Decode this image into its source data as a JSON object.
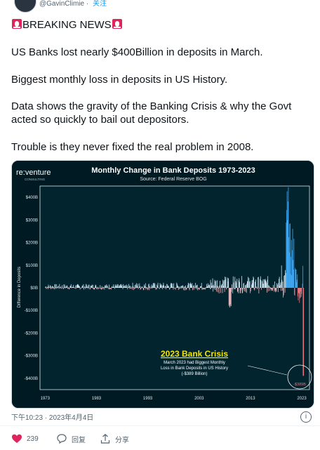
{
  "header": {
    "handle": "@GavinClimie",
    "separator": "·",
    "follow_label": "关注"
  },
  "tweet": {
    "line1": "BREAKING NEWS",
    "line2": "US Banks lost nearly $400Billion in deposits in March.",
    "line3": "Biggest monthly loss in deposits in US History.",
    "line4a": "Data shows the gravity of the Banking Crisis & why the Govt",
    "line4b": "acted so quickly to bail out depositors.",
    "line5": "Trouble is they never fixed the real problem in 2008."
  },
  "chart_data": {
    "type": "bar",
    "logo_main": "re:venture",
    "logo_sub": "CONSULTING",
    "title": "Monthly Change in Bank Deposits 1973-2023",
    "subtitle": "Source: Federal Reserve BOG",
    "ylabel": "Difference in Deposits",
    "ylim": [
      -450,
      450
    ],
    "y_ticks": [
      -400,
      -300,
      -200,
      -100,
      0,
      100,
      200,
      300,
      400
    ],
    "y_tick_labels": [
      "-$400B",
      "-$300B",
      "-$200B",
      "-$100B",
      "$0B",
      "$100B",
      "$200B",
      "$300B",
      "$400B"
    ],
    "x_ticks": [
      1973,
      1983,
      1993,
      2003,
      2013,
      2023
    ],
    "x_tick_labels": [
      "1973",
      "1983",
      "1993",
      "2003",
      "2013",
      "2023"
    ],
    "annotation_title": "2023 Bank Crisis",
    "annotation_text_1": "March 2023 had Biggest Monthly",
    "annotation_text_2": "Loss in Bank Deposits in US History",
    "annotation_text_3": "(-$389 Billion)",
    "callout_label": "-$389B",
    "highlight_value": -389,
    "colors": {
      "bg": "#001a23",
      "positive": "#cde3ef",
      "negative": "#e9b8bc",
      "recent_pos": "#3fa9f5",
      "recent_neg": "#e8747c",
      "accent_title": "#f2e600"
    }
  },
  "footer": {
    "timestamp": "下午10:23 · 2023年4月4日",
    "more_icon": "i"
  },
  "actions": {
    "likes": "239",
    "reply_label": "回复",
    "share_label": "分享"
  }
}
